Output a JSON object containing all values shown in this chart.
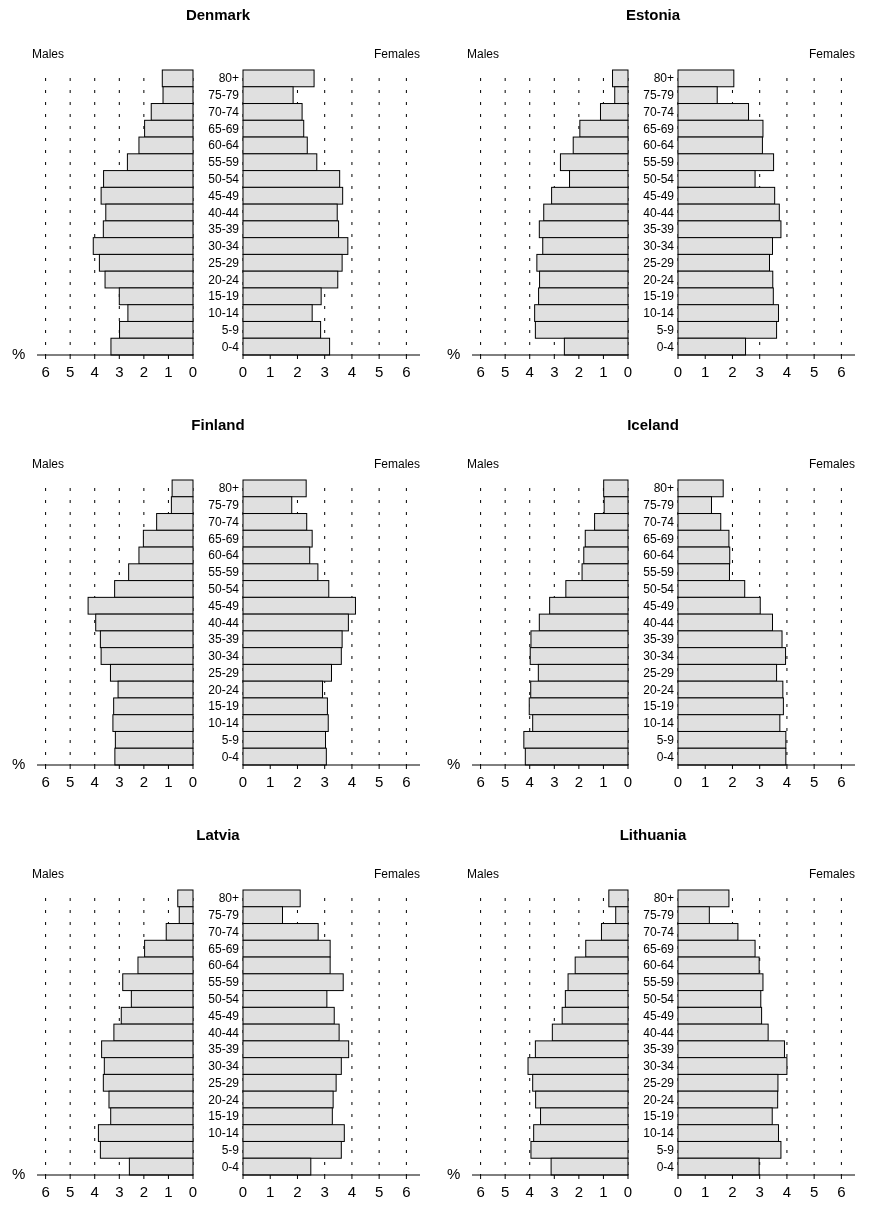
{
  "chart_data": [
    {
      "type": "bar",
      "orientation": "horizontal",
      "title": "Denmark",
      "xlabel": "%",
      "categories": [
        null,
        null,
        null,
        null,
        null,
        null,
        null,
        null,
        null,
        null,
        null,
        null,
        null,
        null,
        null,
        null,
        null
      ],
      "series": [
        {
          "name": "Males",
          "color": "#e0e0e0",
          "values": [
            1.25,
            1.22,
            1.7,
            1.97,
            2.2,
            2.67,
            3.64,
            3.74,
            3.55,
            3.65,
            4.06,
            3.81,
            3.58,
            3.0,
            2.65,
            2.99,
            3.34
          ]
        }
      ],
      "xlim": [
        6.35,
        0
      ],
      "xticks": [
        0,
        1,
        2,
        3,
        4,
        5,
        6
      ],
      "grid": "x",
      "legend": "top left"
    },
    {
      "type": "bar",
      "orientation": "horizontal",
      "categories": [
        "80+",
        "75-79",
        "70-74",
        "65-69",
        "60-64",
        "55-59",
        "50-54",
        "45-49",
        "40-44",
        "35-39",
        "30-34",
        "25-29",
        "20-24",
        "15-19",
        "10-14",
        "5-9",
        "0-4"
      ],
      "series": [
        {
          "name": "Females",
          "color": "#e0e0e0",
          "values": [
            2.61,
            1.84,
            2.17,
            2.23,
            2.36,
            2.71,
            3.55,
            3.66,
            3.46,
            3.51,
            3.85,
            3.64,
            3.48,
            2.87,
            2.54,
            2.85,
            3.18
          ]
        }
      ],
      "xlim": [
        0,
        6.5
      ],
      "xticks": [
        0,
        1,
        2,
        3,
        4,
        5,
        6
      ],
      "grid": "x",
      "legend": "top right"
    },
    {
      "type": "bar",
      "orientation": "horizontal",
      "title": "Estonia",
      "xlabel": "%",
      "categories": [
        null,
        null,
        null,
        null,
        null,
        null,
        null,
        null,
        null,
        null,
        null,
        null,
        null,
        null,
        null,
        null,
        null
      ],
      "series": [
        {
          "name": "Males",
          "color": "#e0e0e0",
          "values": [
            0.63,
            0.54,
            1.12,
            1.96,
            2.23,
            2.75,
            2.38,
            3.11,
            3.43,
            3.61,
            3.47,
            3.71,
            3.6,
            3.64,
            3.8,
            3.77,
            2.59
          ]
        }
      ],
      "xlim": [
        6.35,
        0
      ],
      "xticks": [
        0,
        1,
        2,
        3,
        4,
        5,
        6
      ],
      "grid": "x",
      "legend": "top left"
    },
    {
      "type": "bar",
      "orientation": "horizontal",
      "categories": [
        "80+",
        "75-79",
        "70-74",
        "65-69",
        "60-64",
        "55-59",
        "50-54",
        "45-49",
        "40-44",
        "35-39",
        "30-34",
        "25-29",
        "20-24",
        "15-19",
        "10-14",
        "5-9",
        "0-4"
      ],
      "series": [
        {
          "name": "Females",
          "color": "#e0e0e0",
          "values": [
            2.05,
            1.44,
            2.59,
            3.12,
            3.1,
            3.51,
            2.83,
            3.55,
            3.72,
            3.78,
            3.47,
            3.36,
            3.48,
            3.5,
            3.69,
            3.62,
            2.48
          ]
        }
      ],
      "xlim": [
        0,
        6.5
      ],
      "xticks": [
        0,
        1,
        2,
        3,
        4,
        5,
        6
      ],
      "grid": "x",
      "legend": "top right"
    },
    {
      "type": "bar",
      "orientation": "horizontal",
      "title": "Finland",
      "xlabel": "%",
      "categories": [
        null,
        null,
        null,
        null,
        null,
        null,
        null,
        null,
        null,
        null,
        null,
        null,
        null,
        null,
        null,
        null,
        null
      ],
      "series": [
        {
          "name": "Males",
          "color": "#e0e0e0",
          "values": [
            0.85,
            0.88,
            1.48,
            2.02,
            2.2,
            2.62,
            3.19,
            4.27,
            3.96,
            3.77,
            3.74,
            3.36,
            3.05,
            3.23,
            3.26,
            3.16,
            3.18
          ]
        }
      ],
      "xlim": [
        6.35,
        0
      ],
      "xticks": [
        0,
        1,
        2,
        3,
        4,
        5,
        6
      ],
      "grid": "x",
      "legend": "top left"
    },
    {
      "type": "bar",
      "orientation": "horizontal",
      "categories": [
        "80+",
        "75-79",
        "70-74",
        "65-69",
        "60-64",
        "55-59",
        "50-54",
        "45-49",
        "40-44",
        "35-39",
        "30-34",
        "25-29",
        "20-24",
        "15-19",
        "10-14",
        "5-9",
        "0-4"
      ],
      "series": [
        {
          "name": "Females",
          "color": "#e0e0e0",
          "values": [
            2.32,
            1.79,
            2.34,
            2.54,
            2.45,
            2.75,
            3.15,
            4.13,
            3.87,
            3.64,
            3.61,
            3.25,
            2.92,
            3.1,
            3.13,
            3.03,
            3.06
          ]
        }
      ],
      "xlim": [
        0,
        6.5
      ],
      "xticks": [
        0,
        1,
        2,
        3,
        4,
        5,
        6
      ],
      "grid": "x",
      "legend": "top right"
    },
    {
      "type": "bar",
      "orientation": "horizontal",
      "title": "Iceland",
      "xlabel": "%",
      "categories": [
        null,
        null,
        null,
        null,
        null,
        null,
        null,
        null,
        null,
        null,
        null,
        null,
        null,
        null,
        null,
        null,
        null
      ],
      "series": [
        {
          "name": "Males",
          "color": "#e0e0e0",
          "values": [
            0.99,
            0.97,
            1.36,
            1.74,
            1.8,
            1.87,
            2.53,
            3.19,
            3.61,
            3.95,
            3.98,
            3.65,
            3.96,
            4.02,
            3.88,
            4.24,
            4.18
          ]
        }
      ],
      "xlim": [
        6.35,
        0
      ],
      "xticks": [
        0,
        1,
        2,
        3,
        4,
        5,
        6
      ],
      "grid": "x",
      "legend": "top left"
    },
    {
      "type": "bar",
      "orientation": "horizontal",
      "categories": [
        "80+",
        "75-79",
        "70-74",
        "65-69",
        "60-64",
        "55-59",
        "50-54",
        "45-49",
        "40-44",
        "35-39",
        "30-34",
        "25-29",
        "20-24",
        "15-19",
        "10-14",
        "5-9",
        "0-4"
      ],
      "series": [
        {
          "name": "Females",
          "color": "#e0e0e0",
          "values": [
            1.66,
            1.23,
            1.57,
            1.87,
            1.9,
            1.89,
            2.45,
            3.02,
            3.47,
            3.82,
            3.95,
            3.62,
            3.85,
            3.87,
            3.74,
            3.96,
            3.96
          ]
        }
      ],
      "xlim": [
        0,
        6.5
      ],
      "xticks": [
        0,
        1,
        2,
        3,
        4,
        5,
        6
      ],
      "grid": "x",
      "legend": "top right"
    },
    {
      "type": "bar",
      "orientation": "horizontal",
      "title": "Latvia",
      "xlabel": "%",
      "categories": [
        null,
        null,
        null,
        null,
        null,
        null,
        null,
        null,
        null,
        null,
        null,
        null,
        null,
        null,
        null,
        null,
        null
      ],
      "series": [
        {
          "name": "Males",
          "color": "#e0e0e0",
          "values": [
            0.62,
            0.56,
            1.09,
            1.97,
            2.24,
            2.86,
            2.51,
            2.92,
            3.22,
            3.72,
            3.61,
            3.65,
            3.42,
            3.35,
            3.85,
            3.77,
            2.59
          ]
        }
      ],
      "xlim": [
        6.35,
        0
      ],
      "xticks": [
        0,
        1,
        2,
        3,
        4,
        5,
        6
      ],
      "grid": "x",
      "legend": "top left"
    },
    {
      "type": "bar",
      "orientation": "horizontal",
      "categories": [
        "80+",
        "75-79",
        "70-74",
        "65-69",
        "60-64",
        "55-59",
        "50-54",
        "45-49",
        "40-44",
        "35-39",
        "30-34",
        "25-29",
        "20-24",
        "15-19",
        "10-14",
        "5-9",
        "0-4"
      ],
      "series": [
        {
          "name": "Females",
          "color": "#e0e0e0",
          "values": [
            2.1,
            1.45,
            2.76,
            3.2,
            3.2,
            3.68,
            3.08,
            3.35,
            3.53,
            3.88,
            3.61,
            3.42,
            3.31,
            3.28,
            3.72,
            3.61,
            2.49
          ]
        }
      ],
      "xlim": [
        0,
        6.5
      ],
      "xticks": [
        0,
        1,
        2,
        3,
        4,
        5,
        6
      ],
      "grid": "x",
      "legend": "top right"
    },
    {
      "type": "bar",
      "orientation": "horizontal",
      "title": "Lithuania",
      "xlabel": "%",
      "categories": [
        null,
        null,
        null,
        null,
        null,
        null,
        null,
        null,
        null,
        null,
        null,
        null,
        null,
        null,
        null,
        null,
        null
      ],
      "series": [
        {
          "name": "Males",
          "color": "#e0e0e0",
          "values": [
            0.78,
            0.5,
            1.08,
            1.72,
            2.15,
            2.44,
            2.55,
            2.68,
            3.08,
            3.77,
            4.07,
            3.88,
            3.76,
            3.56,
            3.84,
            3.95,
            3.13
          ]
        }
      ],
      "xlim": [
        6.35,
        0
      ],
      "xticks": [
        0,
        1,
        2,
        3,
        4,
        5,
        6
      ],
      "grid": "x",
      "legend": "top left"
    },
    {
      "type": "bar",
      "orientation": "horizontal",
      "categories": [
        "80+",
        "75-79",
        "70-74",
        "65-69",
        "60-64",
        "55-59",
        "50-54",
        "45-49",
        "40-44",
        "35-39",
        "30-34",
        "25-29",
        "20-24",
        "15-19",
        "10-14",
        "5-9",
        "0-4"
      ],
      "series": [
        {
          "name": "Females",
          "color": "#e0e0e0",
          "values": [
            1.87,
            1.15,
            2.2,
            2.83,
            2.98,
            3.12,
            3.04,
            3.07,
            3.31,
            3.91,
            4.0,
            3.67,
            3.66,
            3.46,
            3.69,
            3.78,
            2.98
          ]
        }
      ],
      "xlim": [
        0,
        6.5
      ],
      "xticks": [
        0,
        1,
        2,
        3,
        4,
        5,
        6
      ],
      "grid": "x",
      "legend": "top right"
    }
  ]
}
